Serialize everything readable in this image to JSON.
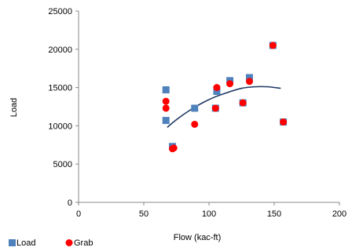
{
  "chart_data": {
    "type": "scatter",
    "xlabel": "Flow (kac-ft)",
    "ylabel": "Load",
    "xlim": [
      0,
      200
    ],
    "ylim": [
      0,
      25000
    ],
    "xticks": [
      "0",
      "50",
      "100",
      "150",
      "200"
    ],
    "yticks": [
      "0",
      "5000",
      "10000",
      "15000",
      "20000",
      "25000"
    ],
    "grid": false,
    "legend_position": "bottom-left",
    "series": [
      {
        "name": "Load",
        "marker": "square",
        "color": "#4F81BD",
        "points": [
          [
            67,
            14700
          ],
          [
            67,
            10700
          ],
          [
            72,
            7300
          ],
          [
            89,
            12300
          ],
          [
            105,
            12300
          ],
          [
            106,
            14500
          ],
          [
            116,
            15900
          ],
          [
            126,
            13000
          ],
          [
            131,
            16300
          ],
          [
            149,
            20500
          ],
          [
            157,
            10500
          ]
        ]
      },
      {
        "name": "Grab",
        "marker": "circle",
        "color": "#FF0000",
        "points": [
          [
            67,
            13200
          ],
          [
            67,
            12300
          ],
          [
            72,
            7000
          ],
          [
            73,
            7100
          ],
          [
            89,
            10200
          ],
          [
            105,
            12300
          ],
          [
            106,
            15000
          ],
          [
            116,
            15500
          ],
          [
            126,
            13000
          ],
          [
            131,
            15800
          ],
          [
            149,
            20500
          ],
          [
            157,
            10500
          ]
        ]
      }
    ],
    "trendline": {
      "type": "polynomial",
      "color": "#1F3864",
      "points": [
        [
          68,
          9800
        ],
        [
          75,
          10800
        ],
        [
          85,
          12000
        ],
        [
          95,
          13000
        ],
        [
          105,
          13800
        ],
        [
          115,
          14400
        ],
        [
          125,
          14900
        ],
        [
          135,
          15100
        ],
        [
          145,
          15100
        ],
        [
          155,
          14900
        ]
      ]
    }
  }
}
